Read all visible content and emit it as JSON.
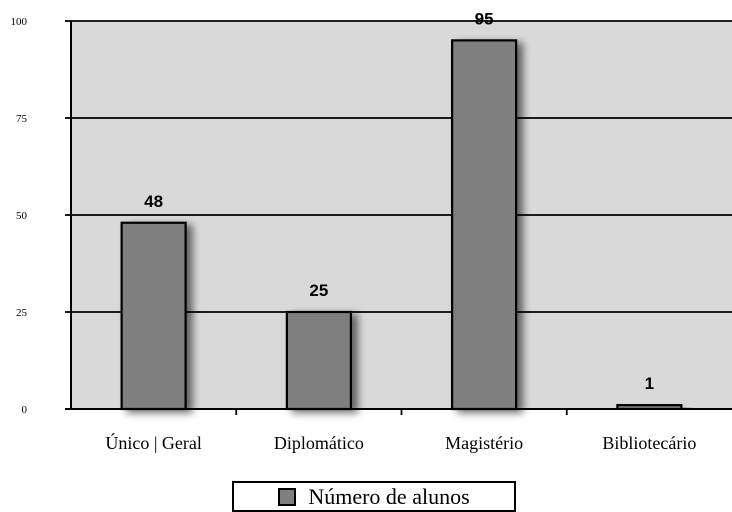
{
  "chart_data": {
    "type": "bar",
    "categories": [
      "Único | Geral",
      "Diplomático",
      "Magistério",
      "Bibliotecário"
    ],
    "series": [
      {
        "name": "Número de alunos",
        "values": [
          48,
          25,
          95,
          1
        ]
      }
    ],
    "data_labels": [
      "48",
      "25",
      "95",
      "1"
    ],
    "y_ticks": [
      "0",
      "25",
      "50",
      "75",
      "100"
    ],
    "ylim": [
      0,
      100
    ],
    "title": "",
    "xlabel": "",
    "ylabel": "",
    "grid": true,
    "legend_position": "bottom"
  },
  "colors": {
    "plot_background": "#d9d9d9",
    "bar_fill": "#7f7f7f",
    "bar_stroke": "#000000",
    "gridline": "#000000"
  }
}
